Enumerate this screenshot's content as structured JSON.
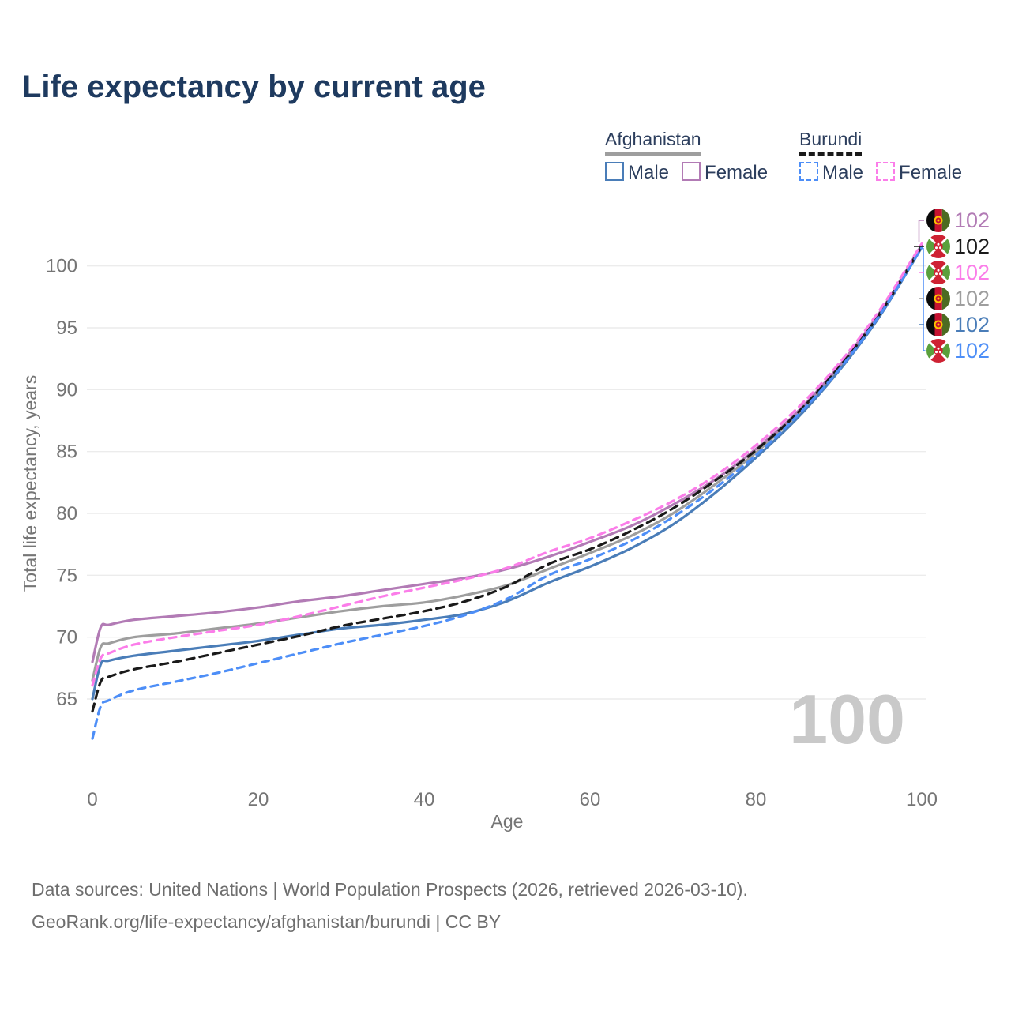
{
  "header": {
    "title": "Life expectancy by current age"
  },
  "legend": {
    "groups": [
      {
        "country": "Afghanistan",
        "line_style": "solid",
        "underline_color": "#9e9e9e",
        "items": [
          {
            "label": "Male",
            "color": "#4a7db8",
            "dashed": false
          },
          {
            "label": "Female",
            "color": "#b27bb5",
            "dashed": false
          }
        ]
      },
      {
        "country": "Burundi",
        "line_style": "dashed",
        "underline_color": "#1a1a1a",
        "items": [
          {
            "label": "Male",
            "color": "#4d8ef7",
            "dashed": true
          },
          {
            "label": "Female",
            "color": "#fb7de9",
            "dashed": true
          }
        ]
      }
    ]
  },
  "chart_data": {
    "type": "line",
    "title": "Life expectancy by current age",
    "xlabel": "Age",
    "ylabel": "Total life expectancy, years",
    "x_ticks": [
      0,
      20,
      40,
      60,
      80,
      100
    ],
    "y_ticks": [
      65,
      70,
      75,
      80,
      85,
      90,
      95,
      100
    ],
    "xlim": [
      0,
      100
    ],
    "grid": "horizontal-only",
    "legend_position": "top-right",
    "watermark": "100",
    "ages": [
      0,
      1,
      2,
      5,
      10,
      15,
      20,
      25,
      30,
      35,
      40,
      45,
      50,
      55,
      60,
      65,
      70,
      75,
      80,
      85,
      90,
      95,
      100
    ],
    "series": [
      {
        "name": "Afghanistan Female",
        "country": "Afghanistan",
        "sex": "female",
        "color": "#b27bb5",
        "dashed": false,
        "flag": "afg",
        "end_label": "102",
        "values": [
          68.0,
          70.8,
          71.0,
          71.4,
          71.7,
          72.0,
          72.4,
          72.9,
          73.3,
          73.8,
          74.3,
          74.8,
          75.5,
          76.5,
          77.7,
          79.0,
          80.7,
          82.7,
          85.2,
          88.2,
          91.9,
          96.3,
          101.7
        ]
      },
      {
        "name": "Burundi Both Sexes",
        "country": "Burundi",
        "sex": "all",
        "color": "#1a1a1a",
        "dashed": true,
        "flag": "bdi",
        "end_label": "102",
        "values": [
          64.0,
          66.4,
          66.8,
          67.4,
          68.0,
          68.7,
          69.4,
          70.1,
          70.9,
          71.5,
          72.1,
          72.9,
          74.1,
          75.9,
          77.1,
          78.6,
          80.4,
          82.6,
          85.1,
          88.1,
          91.8,
          96.2,
          101.6
        ]
      },
      {
        "name": "Burundi Female",
        "country": "Burundi",
        "sex": "female",
        "color": "#fb7de9",
        "dashed": true,
        "flag": "bdi",
        "end_label": "102",
        "values": [
          66.1,
          68.3,
          68.7,
          69.4,
          70.0,
          70.5,
          71.0,
          71.7,
          72.5,
          73.3,
          74.0,
          74.7,
          75.6,
          76.9,
          78.0,
          79.4,
          81.0,
          83.0,
          85.5,
          88.5,
          92.1,
          96.5,
          101.8
        ]
      },
      {
        "name": "Afghanistan Both Sexes",
        "country": "Afghanistan",
        "sex": "all",
        "color": "#9e9e9e",
        "dashed": false,
        "flag": "afg",
        "end_label": "102",
        "values": [
          66.5,
          69.2,
          69.5,
          70.0,
          70.3,
          70.7,
          71.1,
          71.6,
          72.1,
          72.5,
          72.8,
          73.4,
          74.2,
          75.5,
          76.8,
          78.2,
          80.0,
          82.3,
          84.9,
          88.0,
          91.7,
          96.2,
          101.6
        ]
      },
      {
        "name": "Afghanistan Male",
        "country": "Afghanistan",
        "sex": "male",
        "color": "#4a7db8",
        "dashed": false,
        "flag": "afg",
        "end_label": "102",
        "values": [
          65.0,
          67.8,
          68.1,
          68.5,
          68.9,
          69.3,
          69.7,
          70.2,
          70.7,
          71.0,
          71.4,
          71.9,
          72.9,
          74.4,
          75.7,
          77.2,
          79.1,
          81.6,
          84.5,
          87.7,
          91.5,
          96.0,
          101.5
        ]
      },
      {
        "name": "Burundi Male",
        "country": "Burundi",
        "sex": "male",
        "color": "#4d8ef7",
        "dashed": true,
        "flag": "bdi",
        "end_label": "102",
        "values": [
          61.8,
          64.4,
          64.9,
          65.7,
          66.4,
          67.1,
          67.9,
          68.7,
          69.5,
          70.2,
          70.9,
          71.8,
          73.1,
          75.0,
          76.3,
          77.8,
          79.7,
          82.0,
          84.7,
          87.9,
          91.6,
          96.1,
          101.5
        ]
      }
    ]
  },
  "footer": {
    "line1": "Data sources: United Nations | World Population Prospects (2026, retrieved 2026-03-10).",
    "line2": "GeoRank.org/life-expectancy/afghanistan/burundi | CC BY"
  }
}
